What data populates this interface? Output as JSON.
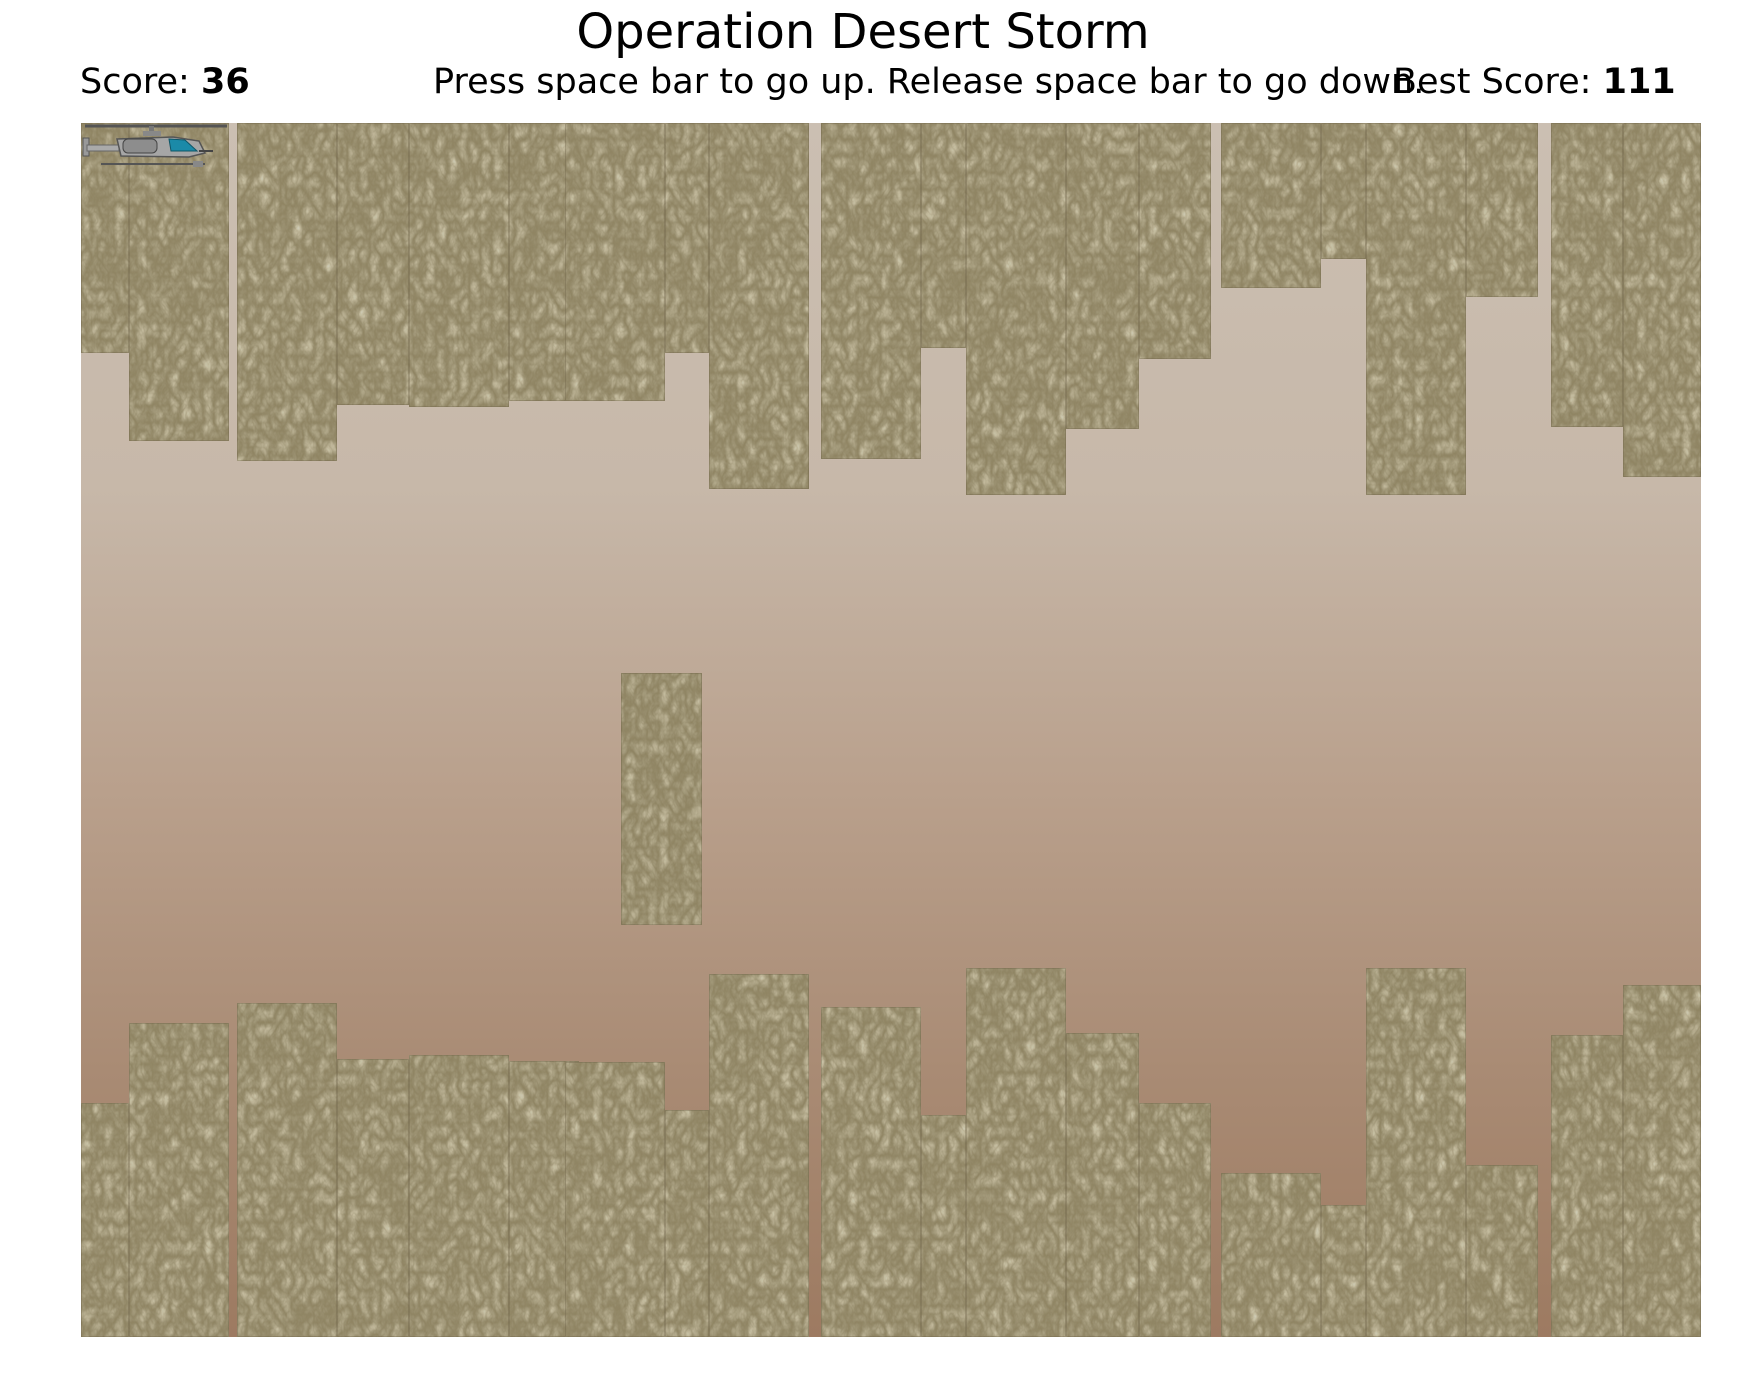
{
  "title": "Operation Desert Storm",
  "score": {
    "label": "Score:",
    "value": "36"
  },
  "instructions": "Press space bar to go up. Release space bar to go down.",
  "best_score": {
    "label": "Best Score:",
    "value": "111"
  },
  "colors": {
    "sky_top": "#cbbfb2",
    "sky_bottom": "#9d7a61",
    "rock_base": "#8f8462",
    "helicopter_body": "#9a9a9a",
    "helicopter_cockpit": "#1b8aa8"
  },
  "sprites": {
    "player": "helicopter-icon",
    "terrain": "rock-texture"
  }
}
